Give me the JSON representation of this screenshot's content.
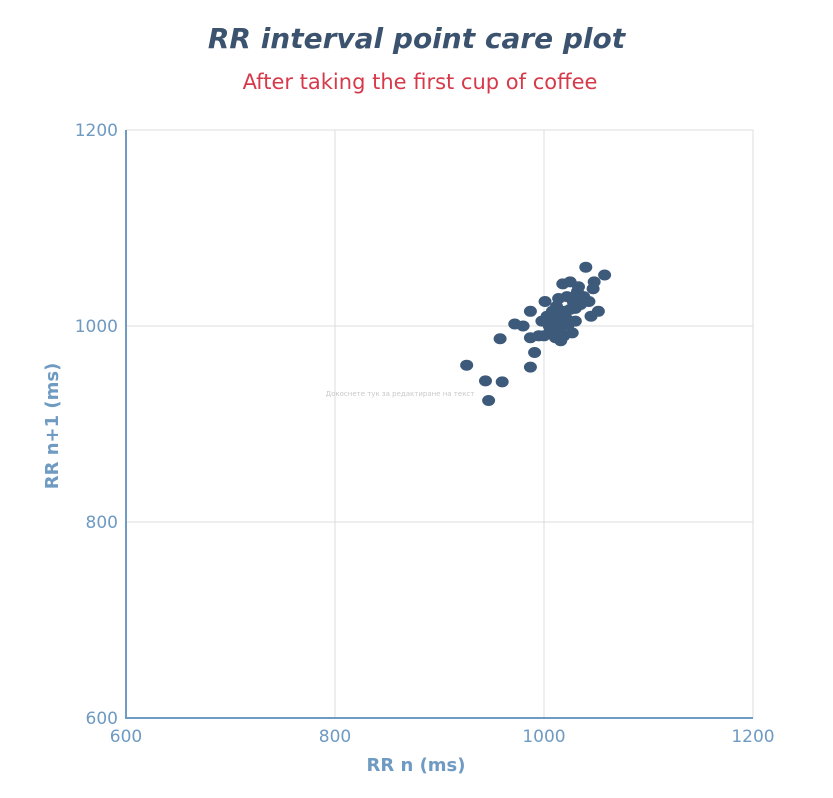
{
  "chart_data": {
    "type": "scatter",
    "title": "RR interval point care plot",
    "subtitle": "After taking the first cup of coffee",
    "xlabel": "RR n (ms)",
    "ylabel": "RR n+1 (ms)",
    "xlim": [
      600,
      1200
    ],
    "ylim": [
      600,
      1200
    ],
    "xticks": [
      "600",
      "800",
      "1000",
      "1200"
    ],
    "yticks": [
      "600",
      "800",
      "1000",
      "1200"
    ],
    "grid": true,
    "marker_color": "#3d5a7a",
    "placeholder_note": "Докоснете тук за редактиране на текст",
    "series": [
      {
        "points": [
          [
            926,
            960
          ],
          [
            944,
            944
          ],
          [
            947,
            924
          ],
          [
            960,
            943
          ],
          [
            958,
            987
          ],
          [
            972,
            1002
          ],
          [
            980,
            1000
          ],
          [
            987,
            1015
          ],
          [
            987,
            988
          ],
          [
            987,
            958
          ],
          [
            991,
            973
          ],
          [
            995,
            990
          ],
          [
            998,
            1005
          ],
          [
            1001,
            1025
          ],
          [
            1003,
            1010
          ],
          [
            1006,
            995
          ],
          [
            1008,
            1015
          ],
          [
            1010,
            1002
          ],
          [
            1011,
            988
          ],
          [
            1012,
            1020
          ],
          [
            1014,
            1028
          ],
          [
            1015,
            997
          ],
          [
            1017,
            1010
          ],
          [
            1018,
            1043
          ],
          [
            1019,
            990
          ],
          [
            1020,
            1015
          ],
          [
            1022,
            1030
          ],
          [
            1023,
            1001
          ],
          [
            1025,
            1045
          ],
          [
            1025,
            1017
          ],
          [
            1027,
            993
          ],
          [
            1028,
            1025
          ],
          [
            1030,
            1005
          ],
          [
            1032,
            1035
          ],
          [
            1033,
            1040
          ],
          [
            1035,
            1022
          ],
          [
            1038,
            1030
          ],
          [
            1040,
            1060
          ],
          [
            1043,
            1025
          ],
          [
            1045,
            1010
          ],
          [
            1047,
            1038
          ],
          [
            1048,
            1045
          ],
          [
            1052,
            1015
          ],
          [
            1058,
            1052
          ],
          [
            1005,
            1000
          ],
          [
            1013,
            1005
          ],
          [
            1021,
            1008
          ],
          [
            1030,
            1018
          ],
          [
            1000,
            990
          ],
          [
            1016,
            985
          ]
        ]
      }
    ]
  }
}
